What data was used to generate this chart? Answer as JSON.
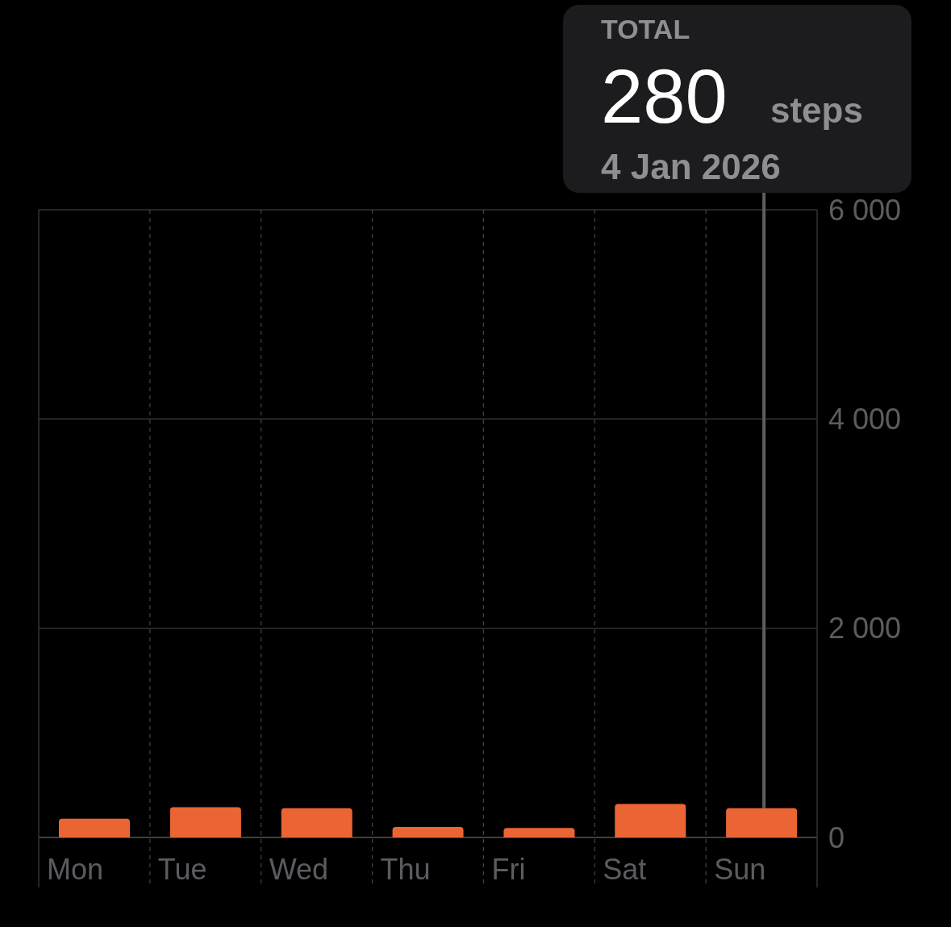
{
  "chart_data": {
    "type": "bar",
    "categories": [
      "Mon",
      "Tue",
      "Wed",
      "Thu",
      "Fri",
      "Sat",
      "Sun"
    ],
    "values": [
      180,
      290,
      280,
      100,
      90,
      320,
      280
    ],
    "color": "#eb6534",
    "ylim": [
      0,
      6000
    ],
    "yticks": [
      {
        "value": 0,
        "label": "0"
      },
      {
        "value": 2000,
        "label": "2 000"
      },
      {
        "value": 4000,
        "label": "4 000"
      },
      {
        "value": 6000,
        "label": "6 000"
      }
    ],
    "grid": true,
    "ref_lines": [
      {
        "axis": "x",
        "value": "Sun",
        "color": "#5e5e62"
      }
    ],
    "annotations": [
      "TOTAL",
      "280",
      "steps",
      "4 Jan 2026"
    ]
  }
}
